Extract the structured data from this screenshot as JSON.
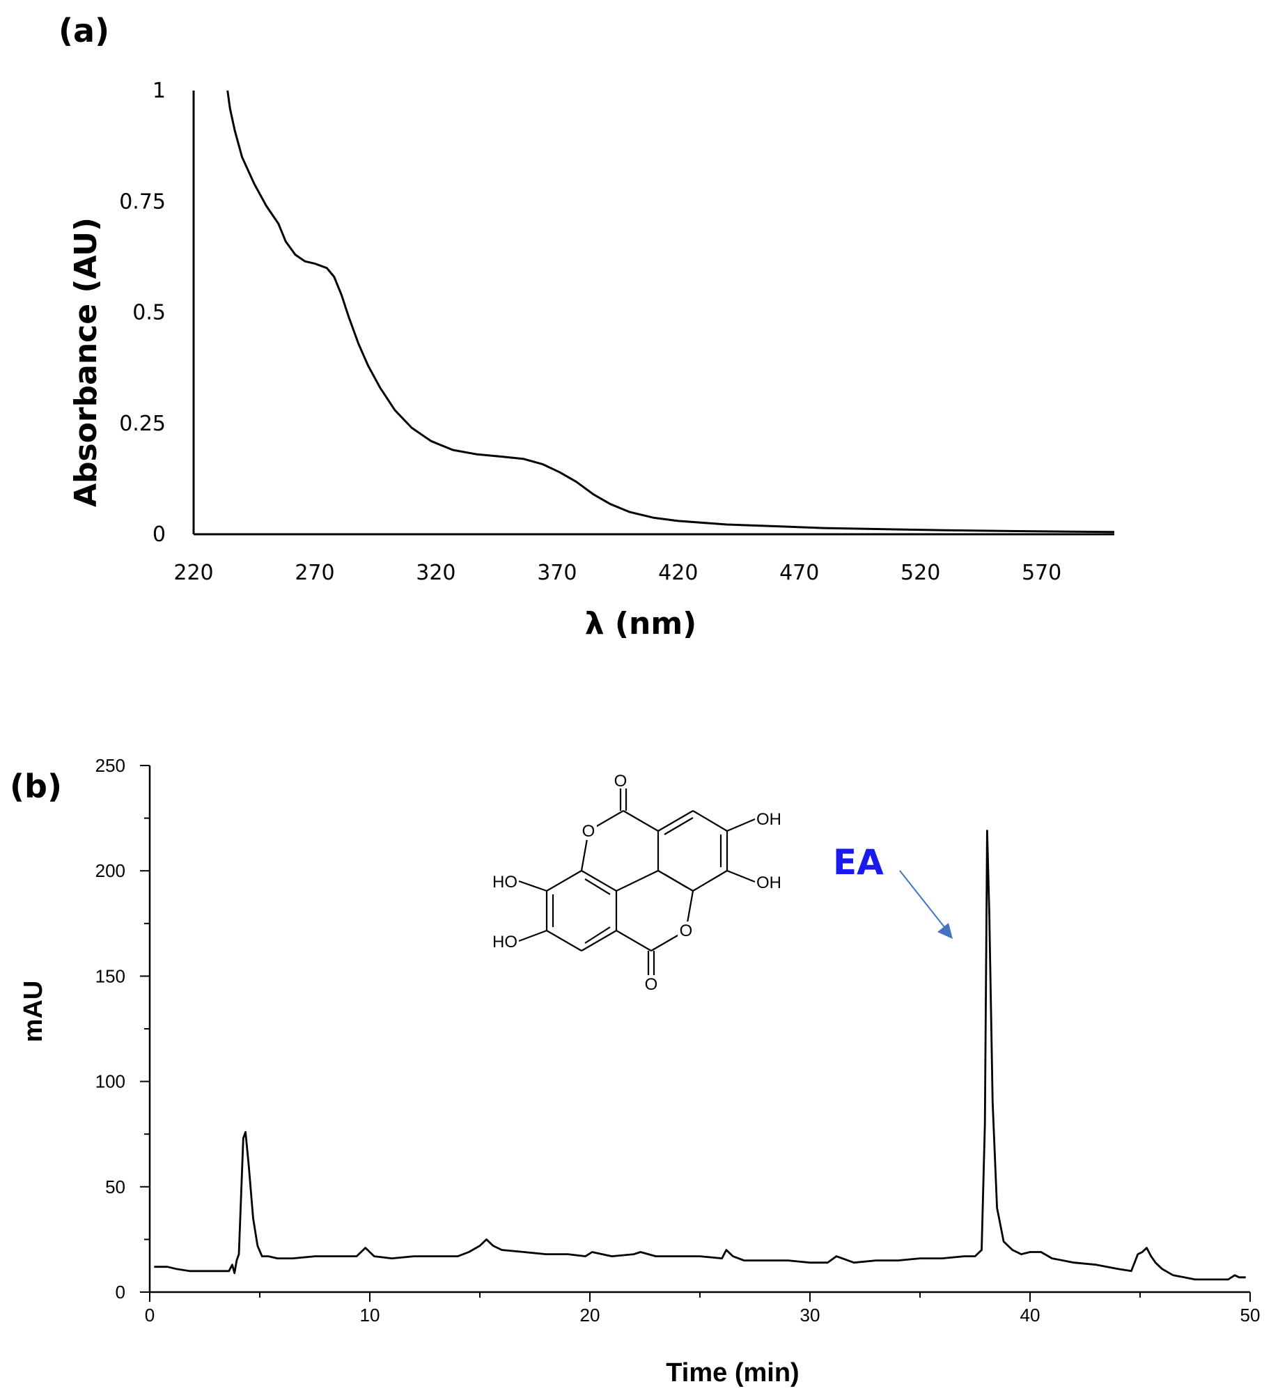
{
  "panels": {
    "a": {
      "label": "(a)"
    },
    "b": {
      "label": "(b)"
    }
  },
  "structure": {
    "atoms": [
      "O",
      "O",
      "O",
      "O",
      "OH",
      "OH",
      "HO",
      "HO"
    ]
  },
  "annotation": {
    "text": "EA",
    "color": "#1a1aee",
    "arrow_color": "#4472c4"
  },
  "chart_data": [
    {
      "id": "a",
      "type": "line",
      "title": "",
      "xlabel": "λ (nm)",
      "ylabel": "Absorbance (AU)",
      "xlim": [
        220,
        600
      ],
      "ylim": [
        0,
        1
      ],
      "xticks": [
        220,
        270,
        320,
        370,
        420,
        470,
        520,
        570
      ],
      "yticks": [
        0,
        0.25,
        0.5,
        0.75,
        1
      ],
      "ytick_labels": [
        "0",
        "0.25",
        "0.5",
        "0.75",
        "1"
      ],
      "grid": false,
      "series": [
        {
          "x": [
            234,
            235,
            237,
            240,
            245,
            250,
            255,
            258,
            262,
            266,
            270,
            275,
            278,
            281,
            284,
            288,
            292,
            297,
            303,
            310,
            318,
            327,
            337,
            347,
            356,
            364,
            371,
            378,
            385,
            392,
            400,
            410,
            420,
            440,
            460,
            480,
            500,
            530,
            560,
            600
          ],
          "y": [
            1.0,
            0.96,
            0.91,
            0.85,
            0.79,
            0.74,
            0.7,
            0.66,
            0.63,
            0.615,
            0.61,
            0.6,
            0.58,
            0.54,
            0.49,
            0.43,
            0.38,
            0.33,
            0.28,
            0.24,
            0.21,
            0.19,
            0.18,
            0.175,
            0.17,
            0.158,
            0.14,
            0.118,
            0.09,
            0.068,
            0.05,
            0.037,
            0.03,
            0.022,
            0.018,
            0.014,
            0.012,
            0.009,
            0.007,
            0.005
          ]
        }
      ]
    },
    {
      "id": "b",
      "type": "line",
      "title": "",
      "xlabel": "Time (min)",
      "ylabel": "mAU",
      "xlim": [
        0,
        50
      ],
      "ylim": [
        0,
        250
      ],
      "xticks": [
        0,
        10,
        20,
        30,
        40,
        50
      ],
      "yticks": [
        0,
        50,
        100,
        150,
        200,
        250
      ],
      "grid": false,
      "series": [
        {
          "x": [
            0.2,
            0.8,
            1.2,
            1.8,
            2.5,
            3.2,
            3.6,
            3.75,
            3.85,
            3.95,
            4.05,
            4.15,
            4.25,
            4.35,
            4.5,
            4.7,
            4.9,
            5.1,
            5.4,
            5.8,
            6.5,
            7.5,
            8.5,
            9.4,
            9.8,
            10.2,
            11,
            12,
            13,
            14,
            14.5,
            15,
            15.3,
            15.6,
            16,
            17,
            18,
            19,
            19.8,
            20.1,
            21,
            22,
            22.3,
            23,
            24,
            25,
            26,
            26.2,
            26.5,
            27,
            28,
            29,
            30,
            30.8,
            31.2,
            32,
            33,
            34,
            35,
            36,
            37,
            37.5,
            37.8,
            37.95,
            38.05,
            38.15,
            38.3,
            38.5,
            38.8,
            39.2,
            39.6,
            40,
            40.5,
            41,
            42,
            43,
            44,
            44.6,
            44.9,
            45.1,
            45.3,
            45.5,
            45.7,
            46,
            46.5,
            47,
            47.5,
            48,
            48.5,
            49,
            49.3,
            49.5,
            49.8
          ],
          "y": [
            12,
            12,
            11,
            10,
            10,
            10,
            10,
            13,
            9,
            15,
            18,
            45,
            73,
            76,
            60,
            35,
            22,
            17,
            17,
            16,
            16,
            17,
            17,
            17,
            21,
            17,
            16,
            17,
            17,
            17,
            19,
            22,
            25,
            22,
            20,
            19,
            18,
            18,
            17,
            19,
            17,
            18,
            19,
            17,
            17,
            17,
            16,
            20,
            17,
            15,
            15,
            15,
            14,
            14,
            17,
            14,
            15,
            15,
            16,
            16,
            17,
            17,
            20,
            80,
            219,
            180,
            90,
            40,
            24,
            20,
            18,
            19,
            19,
            16,
            14,
            13,
            11,
            10,
            18,
            19,
            21,
            17,
            14,
            11,
            8,
            7,
            6,
            6,
            6,
            6,
            8,
            7,
            7
          ]
        }
      ]
    }
  ]
}
